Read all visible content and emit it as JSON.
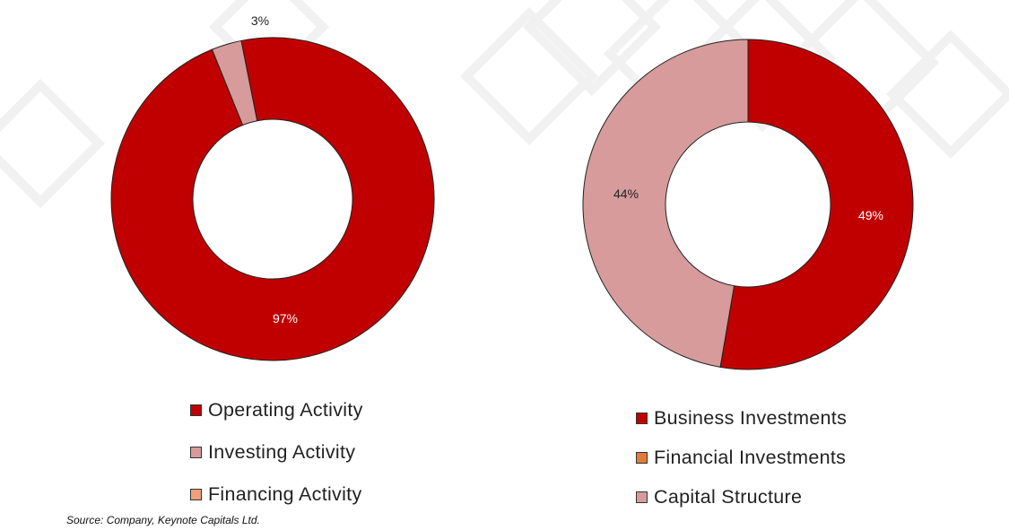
{
  "chart_data": [
    {
      "type": "pie",
      "donut": true,
      "title": "",
      "categories": [
        "Operating Activity",
        "Investing Activity",
        "Financing Activity"
      ],
      "values": [
        97,
        3,
        0
      ],
      "data_labels": [
        "97%",
        "3%",
        ""
      ],
      "colors": [
        "#c00000",
        "#d79b9b",
        "#f0a07a"
      ],
      "legend": "bottom"
    },
    {
      "type": "pie",
      "donut": true,
      "title": "",
      "categories": [
        "Business Investments",
        "Financial Investments",
        "Capital Structure"
      ],
      "values": [
        49,
        0,
        44
      ],
      "data_labels": [
        "49%",
        "",
        "44%"
      ],
      "colors": [
        "#c00000",
        "#e07b39",
        "#d79b9b"
      ],
      "legend": "bottom"
    }
  ],
  "source": "Source: Company, Keynote Capitals Ltd."
}
